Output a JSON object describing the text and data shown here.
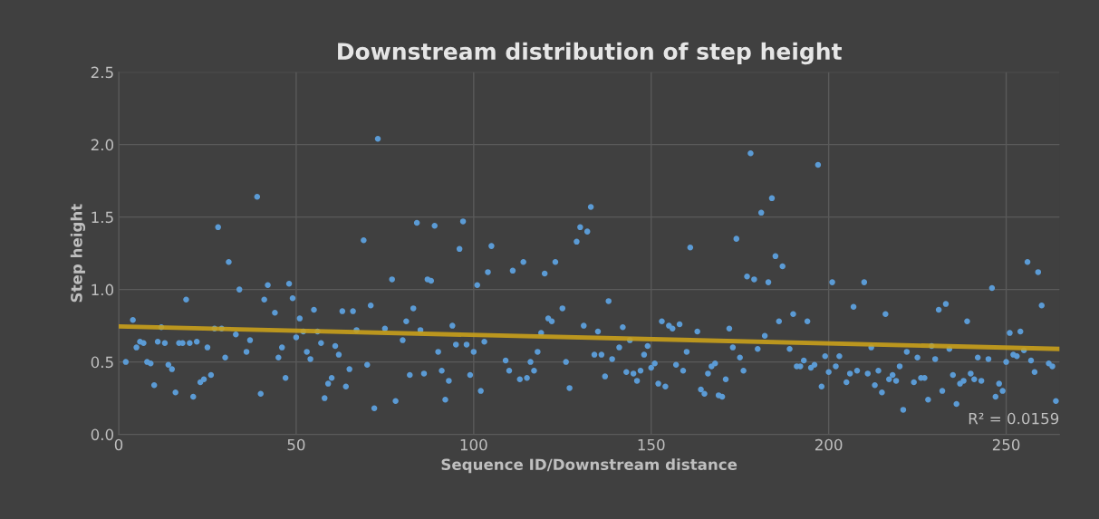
{
  "chart_data": {
    "type": "scatter",
    "title": "Downstream distribution of step height",
    "xlabel": "Sequence ID/Downstream distance",
    "ylabel": "Step height",
    "xlim": [
      0,
      265
    ],
    "xticks": [
      0,
      50,
      100,
      150,
      200,
      250
    ],
    "ylim": [
      0,
      2.5
    ],
    "yticks": [
      {
        "value": 0,
        "label": "0.0"
      },
      0.5,
      {
        "value": 1,
        "label": "1.0"
      },
      1.5,
      {
        "value": 2,
        "label": "2.0"
      },
      2.5
    ],
    "grid": true,
    "annotations": [
      "R² = 0.0159"
    ],
    "series": [
      {
        "color": "#5b9bd5",
        "marker": "circle",
        "x": [
          2,
          4,
          5,
          6,
          7,
          8,
          9,
          10,
          11,
          12,
          13,
          14,
          15,
          16,
          17,
          18,
          19,
          20,
          21,
          22,
          23,
          24,
          25,
          26,
          27,
          28,
          29,
          30,
          31,
          33,
          34,
          36,
          37,
          39,
          40,
          41,
          42,
          44,
          45,
          46,
          47,
          48,
          49,
          50,
          51,
          52,
          53,
          54,
          55,
          56,
          57,
          58,
          59,
          60,
          61,
          62,
          63,
          64,
          65,
          66,
          67,
          69,
          70,
          71,
          72,
          73,
          75,
          77,
          78,
          80,
          81,
          82,
          83,
          84,
          85,
          86,
          87,
          88,
          89,
          90,
          91,
          92,
          93,
          94,
          95,
          96,
          97,
          98,
          99,
          100,
          101,
          102,
          103,
          104,
          105,
          109,
          110,
          111,
          113,
          114,
          115,
          116,
          117,
          118,
          119,
          120,
          121,
          122,
          123,
          125,
          126,
          127,
          129,
          130,
          131,
          132,
          133,
          134,
          135,
          136,
          137,
          138,
          139,
          141,
          142,
          143,
          144,
          145,
          146,
          147,
          148,
          149,
          150,
          151,
          152,
          153,
          154,
          155,
          156,
          157,
          158,
          159,
          160,
          161,
          163,
          164,
          165,
          166,
          167,
          168,
          169,
          170,
          171,
          172,
          173,
          174,
          175,
          176,
          177,
          178,
          179,
          180,
          181,
          182,
          183,
          184,
          185,
          186,
          187,
          189,
          190,
          191,
          192,
          193,
          194,
          195,
          196,
          197,
          198,
          199,
          200,
          201,
          202,
          203,
          205,
          206,
          207,
          208,
          210,
          211,
          212,
          213,
          214,
          215,
          216,
          217,
          218,
          219,
          220,
          221,
          222,
          224,
          225,
          226,
          227,
          228,
          229,
          230,
          231,
          232,
          233,
          234,
          235,
          236,
          237,
          238,
          239,
          240,
          241,
          242,
          243,
          245,
          246,
          247,
          248,
          249,
          250,
          251,
          252,
          253,
          254,
          255,
          256,
          257,
          258,
          259,
          260,
          262,
          263,
          264
        ],
        "values": [
          0.5,
          0.79,
          0.6,
          0.64,
          0.63,
          0.5,
          0.49,
          0.34,
          0.64,
          0.74,
          0.63,
          0.48,
          0.45,
          0.29,
          0.63,
          0.63,
          0.93,
          0.63,
          0.26,
          0.64,
          0.36,
          0.38,
          0.6,
          0.41,
          0.73,
          1.43,
          0.73,
          0.53,
          1.19,
          0.69,
          1.0,
          0.57,
          0.65,
          1.64,
          0.28,
          0.93,
          1.03,
          0.84,
          0.53,
          0.6,
          0.39,
          1.04,
          0.94,
          0.67,
          0.8,
          0.71,
          0.57,
          0.52,
          0.86,
          0.71,
          0.63,
          0.25,
          0.35,
          0.39,
          0.61,
          0.55,
          0.85,
          0.33,
          0.45,
          0.85,
          0.72,
          1.34,
          0.48,
          0.89,
          0.18,
          2.04,
          0.73,
          1.07,
          0.23,
          0.65,
          0.78,
          0.41,
          0.87,
          1.46,
          0.72,
          0.42,
          1.07,
          1.06,
          1.44,
          0.57,
          0.44,
          0.24,
          0.37,
          0.75,
          0.62,
          1.28,
          1.47,
          0.62,
          0.41,
          0.57,
          1.03,
          0.3,
          0.64,
          1.12,
          1.3,
          0.51,
          0.44,
          1.13,
          0.38,
          1.19,
          0.39,
          0.5,
          0.44,
          0.57,
          0.7,
          1.11,
          0.8,
          0.78,
          1.19,
          0.87,
          0.5,
          0.32,
          1.33,
          1.43,
          0.75,
          1.4,
          1.57,
          0.55,
          0.71,
          0.55,
          0.4,
          0.92,
          0.52,
          0.6,
          0.74,
          0.43,
          0.65,
          0.42,
          0.37,
          0.44,
          0.55,
          0.61,
          0.46,
          0.49,
          0.35,
          0.78,
          0.33,
          0.75,
          0.73,
          0.48,
          0.76,
          0.44,
          0.57,
          1.29,
          0.71,
          0.31,
          0.28,
          0.42,
          0.47,
          0.49,
          0.27,
          0.26,
          0.38,
          0.73,
          0.6,
          1.35,
          0.53,
          0.44,
          1.09,
          1.94,
          1.07,
          0.59,
          1.53,
          0.68,
          1.05,
          1.63,
          1.23,
          0.78,
          1.16,
          0.59,
          0.83,
          0.47,
          0.47,
          0.51,
          0.78,
          0.46,
          0.48,
          1.86,
          0.33,
          0.54,
          0.43,
          1.05,
          0.47,
          0.54,
          0.36,
          0.42,
          0.88,
          0.44,
          1.05,
          0.42,
          0.6,
          0.34,
          0.44,
          0.29,
          0.83,
          0.38,
          0.41,
          0.37,
          0.47,
          0.17,
          0.57,
          0.36,
          0.53,
          0.39,
          0.39,
          0.24,
          0.61,
          0.52,
          0.86,
          0.3,
          0.9,
          0.59,
          0.41,
          0.21,
          0.35,
          0.37,
          0.78,
          0.42,
          0.38,
          0.53,
          0.37,
          0.52,
          1.01,
          0.26,
          0.35,
          0.3,
          0.5,
          0.7,
          0.55,
          0.54,
          0.71,
          0.58,
          1.19,
          0.51,
          0.43,
          1.12,
          0.89,
          0.49,
          0.47,
          0.23
        ]
      },
      {
        "type": "line",
        "color": "#c9a01b",
        "marker": "none",
        "line_style": "solid",
        "x": [
          0,
          265
        ],
        "values": [
          0.745,
          0.59
        ]
      }
    ]
  }
}
